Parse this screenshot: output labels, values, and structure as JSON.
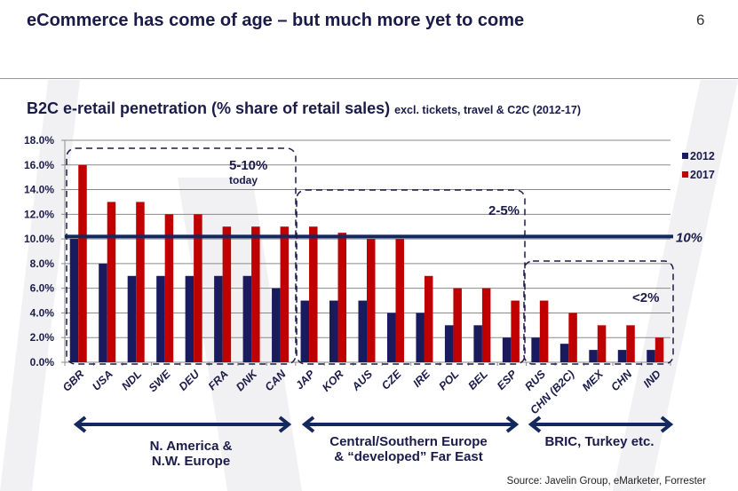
{
  "header": {
    "title": "eCommerce has come of age – but much more yet to come",
    "page_number": "6"
  },
  "chart_data": {
    "type": "bar",
    "title": "B2C e-retail penetration (% share of retail sales)",
    "subtitle": "excl. tickets, travel & C2C (2012-17)",
    "xlabel": "",
    "ylabel": "",
    "ylim": [
      0,
      18
    ],
    "yticks": [
      "0.0%",
      "2.0%",
      "4.0%",
      "6.0%",
      "8.0%",
      "10.0%",
      "12.0%",
      "14.0%",
      "16.0%",
      "18.0%"
    ],
    "grid": true,
    "legend_position": "top-right",
    "categories": [
      "GBR",
      "USA",
      "NDL",
      "SWE",
      "DEU",
      "FRA",
      "DNK",
      "CAN",
      "JAP",
      "KOR",
      "AUS",
      "CZE",
      "IRE",
      "POL",
      "BEL",
      "ESP",
      "RUS",
      "CHN (B2C)",
      "MEX",
      "CHN",
      "IND"
    ],
    "series": [
      {
        "name": "2012",
        "color": "#1a1a5e",
        "values": [
          10,
          8,
          7,
          7,
          7,
          7,
          7,
          6,
          5,
          5,
          5,
          4,
          4,
          3,
          3,
          2,
          2,
          1.5,
          1,
          1,
          1
        ]
      },
      {
        "name": "2017",
        "color": "#c00000",
        "values": [
          16,
          13,
          13,
          12,
          12,
          11,
          11,
          11,
          11,
          10.5,
          10,
          10,
          7,
          6,
          6,
          5,
          5,
          4,
          3,
          3,
          2
        ]
      }
    ],
    "reference_line": {
      "value": 10.2,
      "label": "10%",
      "color": "#13285e"
    },
    "annotations": [
      {
        "label": "5-10%",
        "sublabel": "today",
        "from": "GBR",
        "to": "CAN"
      },
      {
        "label": "2-5%",
        "sublabel": "",
        "from": "JAP",
        "to": "ESP"
      },
      {
        "label": "<2%",
        "sublabel": "",
        "from": "RUS",
        "to": "IND"
      }
    ],
    "groups": [
      {
        "label_line1": "N. America &",
        "label_line2": "N.W. Europe"
      },
      {
        "label_line1": "Central/Southern Europe",
        "label_line2": "& “developed” Far East"
      },
      {
        "label_line1": "BRIC, Turkey etc.",
        "label_line2": ""
      }
    ]
  },
  "footer": {
    "source": "Source: Javelin Group, eMarketer, Forrester"
  }
}
